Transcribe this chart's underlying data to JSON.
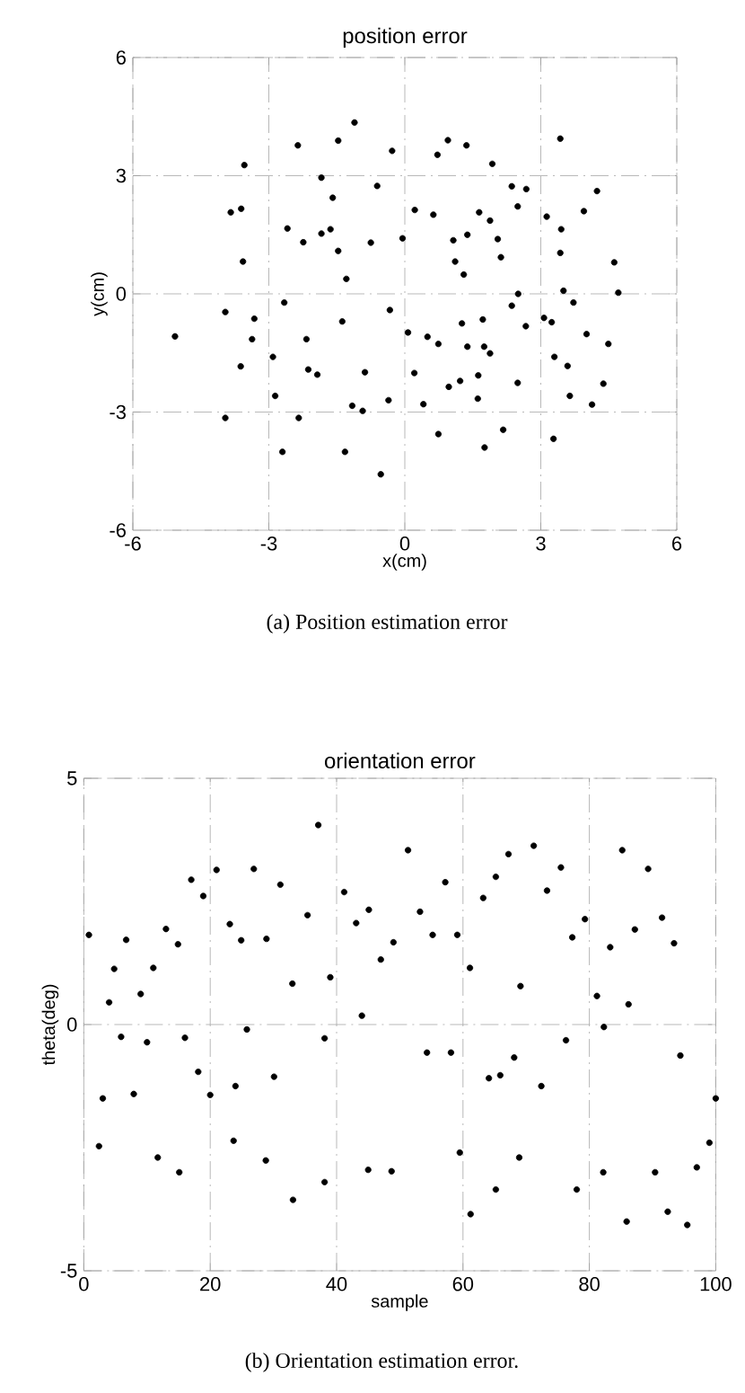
{
  "chart_data": [
    {
      "type": "scatter",
      "title": "position error",
      "xlabel": "x(cm)",
      "ylabel": "y(cm)",
      "annotations": [
        "(a) Position estimation error"
      ],
      "xlim": [
        -6,
        6
      ],
      "ylim": [
        -6,
        6
      ],
      "xticks": [
        -6,
        -3,
        0,
        3,
        6
      ],
      "yticks": [
        -6,
        -3,
        0,
        3,
        6
      ],
      "grid": true,
      "marker": "circle",
      "series": [
        {
          "color": "#000000",
          "x": [
            -5.07,
            -3.54,
            -3.84,
            -3.61,
            -3.57,
            -3.96,
            -3.32,
            -3.37,
            -3.62,
            -3.96,
            -2.36,
            -1.47,
            -1.11,
            -2.59,
            -2.24,
            -1.84,
            -1.59,
            -1.84,
            -1.64,
            -1.47,
            -1.29,
            -2.66,
            -2.17,
            -1.38,
            -2.91,
            -2.13,
            -1.93,
            -2.86,
            -2.34,
            -2.7,
            -1.32,
            -1.16,
            -0.93,
            -0.88,
            -0.61,
            -0.75,
            -0.28,
            -0.05,
            -0.33,
            -0.36,
            -0.53,
            0.07,
            0.21,
            0.22,
            0.63,
            0.72,
            0.95,
            1.36,
            1.93,
            1.07,
            1.38,
            1.11,
            1.3,
            1.64,
            1.88,
            2.05,
            2.12,
            0.5,
            0.74,
            1.26,
            1.72,
            1.38,
            1.75,
            1.88,
            0.41,
            0.97,
            1.22,
            1.62,
            1.61,
            0.74,
            1.76,
            2.17,
            2.36,
            2.68,
            2.49,
            2.5,
            2.36,
            2.67,
            2.49,
            3.43,
            3.13,
            3.45,
            3.43,
            3.5,
            3.72,
            3.07,
            3.24,
            3.3,
            3.59,
            3.64,
            3.28,
            3.95,
            4.24,
            4.62,
            4.71,
            4.01,
            4.49,
            4.38,
            4.13
          ],
          "values": [
            -1.08,
            3.27,
            2.07,
            2.16,
            0.82,
            -0.46,
            -0.63,
            -1.15,
            -1.84,
            -3.15,
            3.77,
            3.89,
            4.35,
            1.66,
            1.31,
            2.95,
            2.44,
            1.53,
            1.64,
            1.09,
            0.38,
            -0.22,
            -1.15,
            -0.7,
            -1.6,
            -1.92,
            -2.05,
            -2.59,
            -3.15,
            -4.01,
            -4.01,
            -2.84,
            -2.97,
            -1.99,
            2.74,
            1.3,
            3.63,
            1.41,
            -0.41,
            -2.7,
            -4.58,
            -0.98,
            -2.01,
            2.13,
            2.01,
            3.53,
            3.9,
            3.77,
            3.3,
            1.36,
            1.5,
            0.82,
            0.49,
            2.07,
            1.86,
            1.39,
            0.93,
            -1.09,
            -1.27,
            -0.75,
            -0.65,
            -1.34,
            -1.34,
            -1.51,
            -2.8,
            -2.36,
            -2.21,
            -2.07,
            -2.66,
            -3.56,
            -3.9,
            -3.45,
            2.73,
            2.66,
            2.22,
            0.0,
            -0.3,
            -0.82,
            -2.26,
            3.94,
            1.96,
            1.64,
            1.04,
            0.08,
            -0.22,
            -0.61,
            -0.72,
            -1.6,
            -1.83,
            -2.59,
            -3.68,
            2.1,
            2.61,
            0.8,
            0.03,
            -1.02,
            -1.27,
            -2.28,
            -2.81
          ]
        }
      ]
    },
    {
      "type": "scatter",
      "title": "orientation error",
      "xlabel": "sample",
      "ylabel": "theta(deg)",
      "annotations": [
        "(b) Orientation estimation error."
      ],
      "xlim": [
        0,
        100
      ],
      "ylim": [
        -5,
        5
      ],
      "xticks": [
        0,
        20,
        40,
        60,
        80,
        100
      ],
      "yticks": [
        -5,
        0,
        5
      ],
      "grid": true,
      "marker": "circle",
      "series": [
        {
          "color": "#000000",
          "x": [
            0.8,
            3.0,
            4.0,
            4.8,
            5.9,
            6.7,
            7.9,
            9.0,
            10.0,
            11.0,
            13.0,
            14.9,
            16.0,
            17.0,
            18.1,
            18.9,
            20.0,
            21.0,
            23.1,
            24.0,
            24.9,
            25.8,
            26.9,
            28.9,
            30.1,
            31.1,
            33.0,
            35.4,
            37.1,
            38.1,
            39.0,
            41.2,
            43.1,
            44.0,
            45.1,
            47.0,
            49.0,
            51.3,
            53.2,
            54.3,
            55.2,
            57.2,
            58.1,
            59.1,
            61.1,
            63.2,
            64.1,
            65.2,
            65.9,
            67.2,
            68.1,
            69.1,
            71.2,
            72.4,
            73.3,
            75.5,
            76.3,
            77.3,
            79.3,
            81.2,
            82.3,
            83.3,
            85.2,
            86.2,
            87.2,
            89.3,
            91.5,
            93.4,
            94.4,
            2.4,
            11.7,
            15.1,
            23.7,
            28.8,
            33.1,
            38.1,
            45.0,
            48.7,
            59.5,
            61.2,
            65.2,
            68.9,
            78.0,
            82.2,
            85.9,
            90.4,
            92.4,
            95.5,
            97.0,
            99.0,
            100.0
          ],
          "values": [
            1.82,
            -1.5,
            0.45,
            1.13,
            -0.25,
            1.72,
            -1.41,
            0.62,
            -0.36,
            1.15,
            1.94,
            1.63,
            -0.27,
            2.94,
            -0.96,
            2.61,
            -1.43,
            3.14,
            2.04,
            -1.25,
            1.71,
            -0.1,
            3.16,
            1.74,
            -1.06,
            2.84,
            0.83,
            2.22,
            4.05,
            -0.28,
            0.96,
            2.69,
            2.06,
            0.18,
            2.33,
            1.32,
            1.67,
            3.54,
            2.29,
            -0.57,
            1.82,
            2.89,
            -0.57,
            1.82,
            1.15,
            2.57,
            -1.09,
            3.0,
            -1.03,
            3.46,
            -0.67,
            0.78,
            3.63,
            -1.25,
            2.72,
            3.19,
            -0.32,
            1.77,
            2.14,
            0.58,
            -0.05,
            1.57,
            3.54,
            0.41,
            1.93,
            3.16,
            2.17,
            1.65,
            -0.63,
            -2.47,
            -2.7,
            -3.0,
            -2.36,
            -2.76,
            -3.56,
            -3.2,
            -2.95,
            -2.98,
            -2.6,
            -3.85,
            -3.35,
            -2.7,
            -3.35,
            -3.0,
            -4.0,
            -3.0,
            -3.8,
            -4.07,
            -2.9,
            -2.4,
            -1.5
          ]
        }
      ]
    }
  ]
}
